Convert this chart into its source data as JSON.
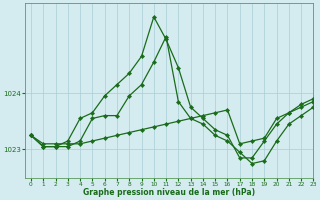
{
  "xlabel": "Graphe pression niveau de la mer (hPa)",
  "bg_color": "#d4ecf0",
  "grid_color": "#aacdd6",
  "line_color": "#1a6b1a",
  "ylim": [
    1022.5,
    1025.6
  ],
  "xlim": [
    -0.5,
    23
  ],
  "yticks": [
    1023,
    1024
  ],
  "xticks": [
    0,
    1,
    2,
    3,
    4,
    5,
    6,
    7,
    8,
    9,
    10,
    11,
    12,
    13,
    14,
    15,
    16,
    17,
    18,
    19,
    20,
    21,
    22,
    23
  ],
  "line1_x": [
    0,
    1,
    2,
    3,
    4,
    5,
    6,
    7,
    8,
    9,
    10,
    11,
    12,
    13,
    14,
    15,
    16,
    17,
    18,
    19,
    20,
    21,
    22,
    23
  ],
  "line1": [
    1023.25,
    1023.05,
    1023.05,
    1023.15,
    1023.55,
    1023.65,
    1023.95,
    1024.15,
    1024.35,
    1024.65,
    1025.35,
    1024.95,
    1024.45,
    1023.75,
    1023.55,
    1023.35,
    1023.25,
    1022.85,
    1022.85,
    1023.15,
    1023.45,
    1023.65,
    1023.8,
    1023.9
  ],
  "line2_x": [
    0,
    1,
    2,
    3,
    4,
    5,
    6,
    7,
    8,
    9,
    10,
    11,
    12,
    13,
    14,
    15,
    16,
    17,
    18,
    19,
    20,
    21,
    22,
    23
  ],
  "line2": [
    1023.25,
    1023.05,
    1023.05,
    1023.05,
    1023.15,
    1023.55,
    1023.6,
    1023.6,
    1023.95,
    1024.15,
    1024.55,
    1025.0,
    1023.85,
    1023.55,
    1023.45,
    1023.25,
    1023.15,
    1022.95,
    1022.75,
    1022.8,
    1023.15,
    1023.45,
    1023.6,
    1023.75
  ],
  "line3_x": [
    0,
    1,
    2,
    3,
    4,
    5,
    6,
    7,
    8,
    9,
    10,
    11,
    12,
    13,
    14,
    15,
    16,
    17,
    18,
    19,
    20,
    21,
    22,
    23
  ],
  "line3": [
    1023.25,
    1023.1,
    1023.1,
    1023.1,
    1023.1,
    1023.15,
    1023.2,
    1023.25,
    1023.3,
    1023.35,
    1023.4,
    1023.45,
    1023.5,
    1023.55,
    1023.6,
    1023.65,
    1023.7,
    1023.1,
    1023.15,
    1023.2,
    1023.55,
    1023.65,
    1023.75,
    1023.85
  ]
}
